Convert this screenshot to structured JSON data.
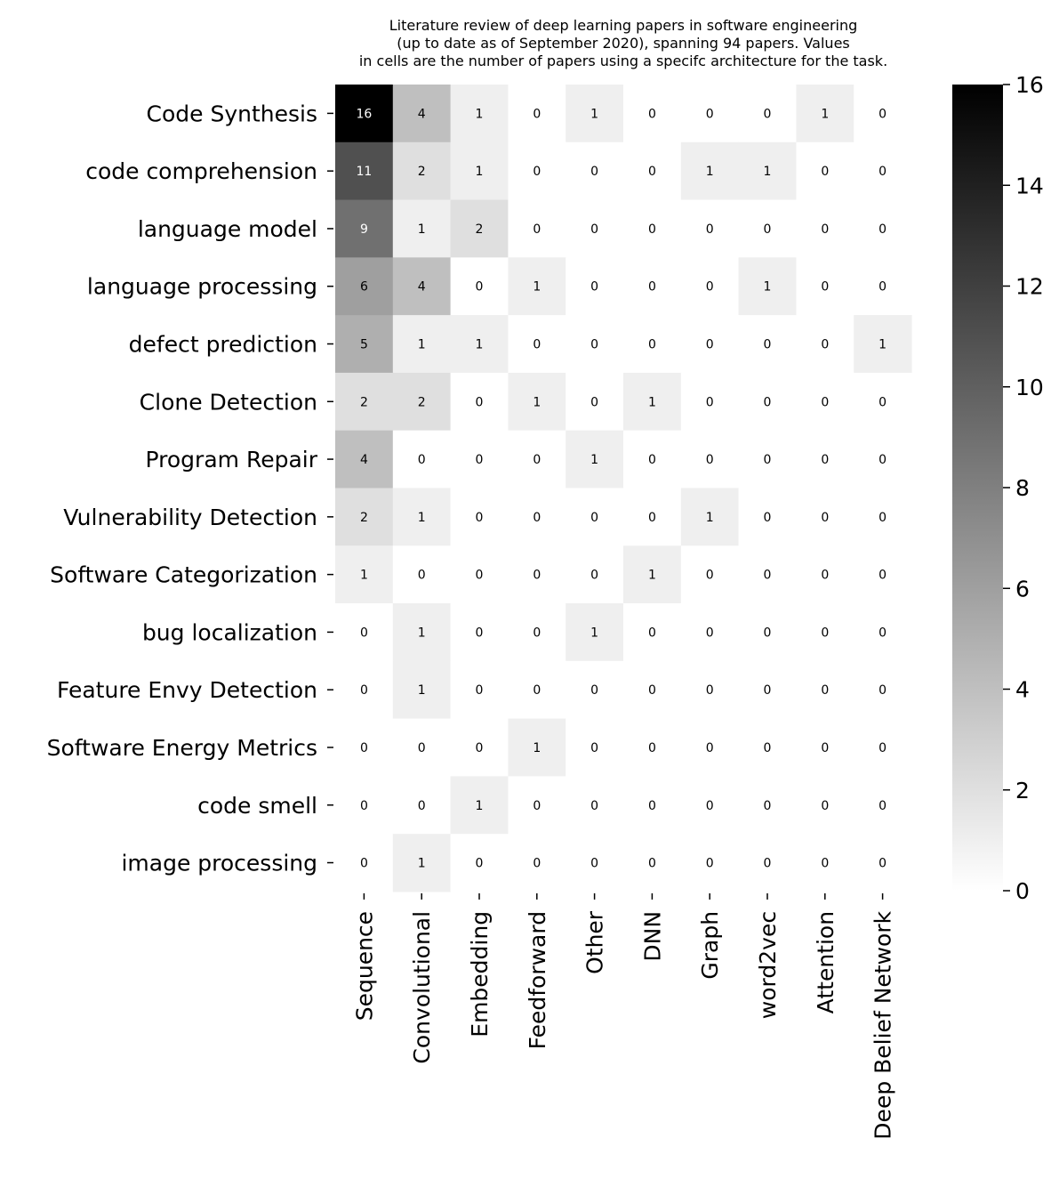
{
  "chart_data": {
    "type": "heatmap",
    "title": [
      "Literature review of deep learning papers in software engineering",
      "(up to date as of September 2020), spanning 94 papers. Values",
      "in cells are the number of papers using a specifc architecture for the task."
    ],
    "rows": [
      "Code Synthesis",
      "code comprehension",
      "language model",
      "language processing",
      "defect prediction",
      "Clone Detection",
      "Program Repair",
      "Vulnerability Detection",
      "Software Categorization",
      "bug localization",
      "Feature Envy Detection",
      "Software Energy Metrics",
      "code smell",
      "image processing"
    ],
    "columns": [
      "Sequence",
      "Convolutional",
      "Embedding",
      "Feedforward",
      "Other",
      "DNN",
      "Graph",
      "word2vec",
      "Attention",
      "Deep Belief Network"
    ],
    "values": [
      [
        16,
        4,
        1,
        0,
        1,
        0,
        0,
        0,
        1,
        0
      ],
      [
        11,
        2,
        1,
        0,
        0,
        0,
        1,
        1,
        0,
        0
      ],
      [
        9,
        1,
        2,
        0,
        0,
        0,
        0,
        0,
        0,
        0
      ],
      [
        6,
        4,
        0,
        1,
        0,
        0,
        0,
        1,
        0,
        0
      ],
      [
        5,
        1,
        1,
        0,
        0,
        0,
        0,
        0,
        0,
        1
      ],
      [
        2,
        2,
        0,
        1,
        0,
        1,
        0,
        0,
        0,
        0
      ],
      [
        4,
        0,
        0,
        0,
        1,
        0,
        0,
        0,
        0,
        0
      ],
      [
        2,
        1,
        0,
        0,
        0,
        0,
        1,
        0,
        0,
        0
      ],
      [
        1,
        0,
        0,
        0,
        0,
        1,
        0,
        0,
        0,
        0
      ],
      [
        0,
        1,
        0,
        0,
        1,
        0,
        0,
        0,
        0,
        0
      ],
      [
        0,
        1,
        0,
        0,
        0,
        0,
        0,
        0,
        0,
        0
      ],
      [
        0,
        0,
        0,
        1,
        0,
        0,
        0,
        0,
        0,
        0
      ],
      [
        0,
        0,
        1,
        0,
        0,
        0,
        0,
        0,
        0,
        0
      ],
      [
        0,
        1,
        0,
        0,
        0,
        0,
        0,
        0,
        0,
        0
      ]
    ],
    "color_scale": {
      "name": "Greys",
      "range": [
        0,
        16
      ],
      "low_color": "#ffffff",
      "high_color": "#000000"
    },
    "colorbar_ticks": [
      0,
      2,
      4,
      6,
      8,
      10,
      12,
      14,
      16
    ]
  }
}
